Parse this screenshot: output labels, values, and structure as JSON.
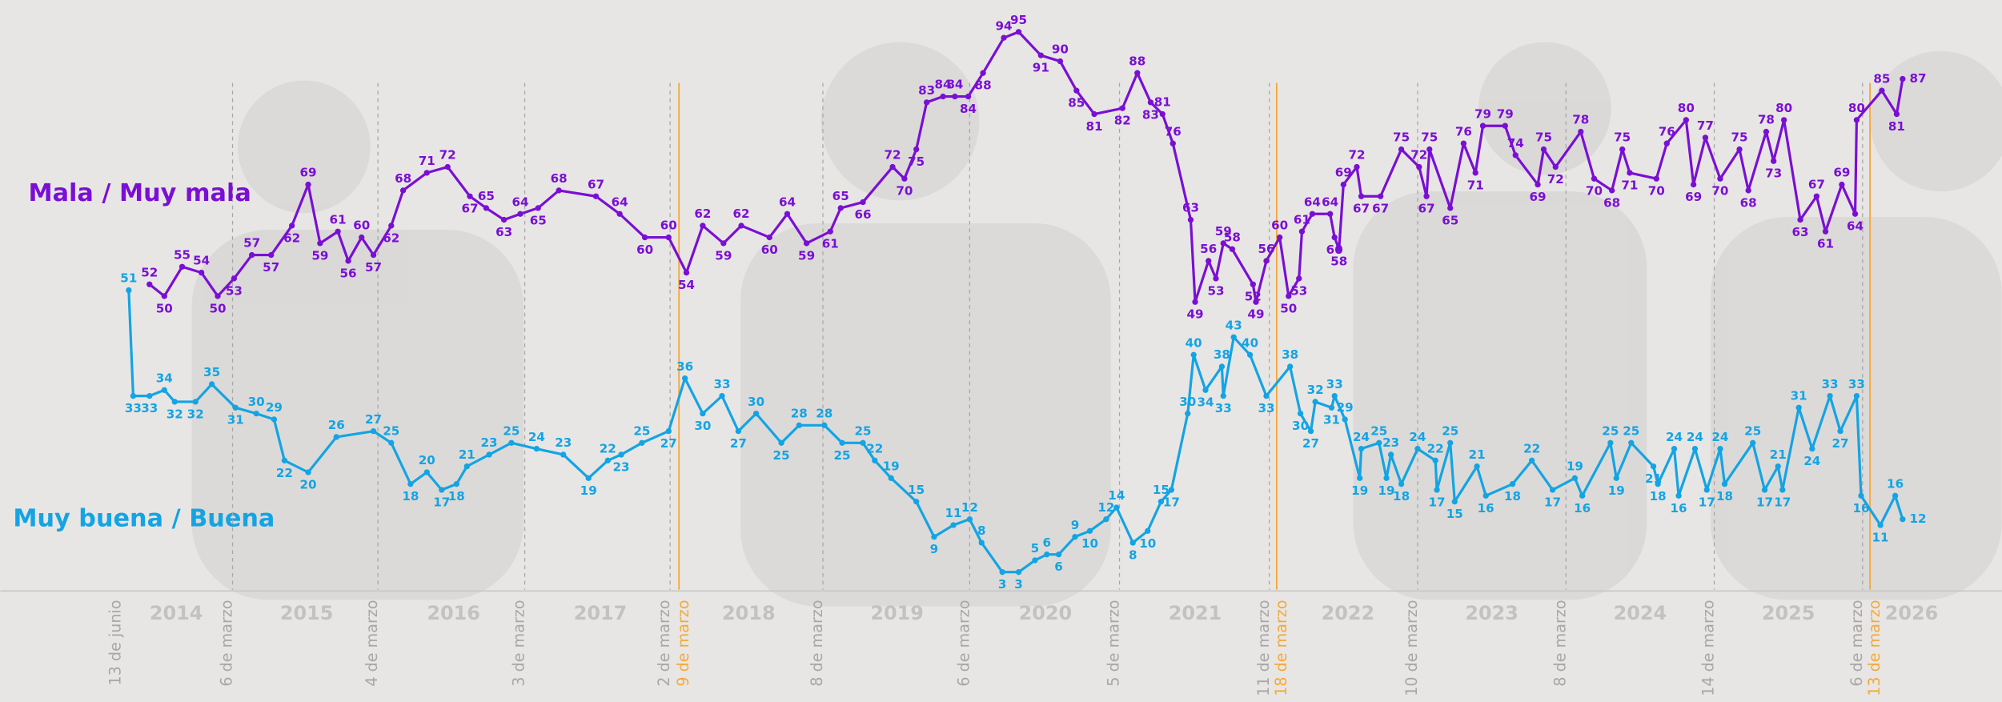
{
  "chart_data": {
    "type": "line",
    "xlim": [
      2013.614,
      2027.108
    ],
    "ylim": [
      0,
      100
    ],
    "xticks": [
      {
        "value": 2014.8,
        "label": "2014"
      },
      {
        "value": 2015.68,
        "label": "2015"
      },
      {
        "value": 2016.67,
        "label": "2016"
      },
      {
        "value": 2017.66,
        "label": "2017"
      },
      {
        "value": 2018.66,
        "label": "2018"
      },
      {
        "value": 2019.66,
        "label": "2019"
      },
      {
        "value": 2020.66,
        "label": "2020"
      },
      {
        "value": 2021.67,
        "label": "2021"
      },
      {
        "value": 2022.7,
        "label": "2022"
      },
      {
        "value": 2023.67,
        "label": "2023"
      },
      {
        "value": 2024.67,
        "label": "2024"
      },
      {
        "value": 2025.67,
        "label": "2025"
      },
      {
        "value": 2026.5,
        "label": "2026"
      }
    ],
    "markers": [
      {
        "x": 2014.43,
        "label": "13 de junio",
        "color": "#a9a7a5",
        "style": "none"
      },
      {
        "x": 2015.18,
        "label": "6 de marzo",
        "color": "#a9a7a5",
        "style": "dashed"
      },
      {
        "x": 2016.16,
        "label": "4 de marzo",
        "color": "#a9a7a5",
        "style": "dashed"
      },
      {
        "x": 2017.15,
        "label": "3 de marzo",
        "color": "#a9a7a5",
        "style": "dashed"
      },
      {
        "x": 2018.13,
        "label": "2 de marzo",
        "color": "#a9a7a5",
        "style": "dashed"
      },
      {
        "x": 2018.19,
        "label": "9 de marzo",
        "color": "#f4a93b",
        "style": "solid"
      },
      {
        "x": 2019.16,
        "label": "8 de marzo",
        "color": "#a9a7a5",
        "style": "dashed"
      },
      {
        "x": 2020.15,
        "label": "6 de marzo",
        "color": "#a9a7a5",
        "style": "dashed"
      },
      {
        "x": 2021.16,
        "label": "5 de marzo",
        "color": "#a9a7a5",
        "style": "dashed"
      },
      {
        "x": 2022.17,
        "label": "11 de marzo",
        "color": "#a9a7a5",
        "style": "dashed"
      },
      {
        "x": 2022.22,
        "label": "18 de marzo",
        "color": "#f4a93b",
        "style": "solid"
      },
      {
        "x": 2023.17,
        "label": "10 de marzo",
        "color": "#a9a7a5",
        "style": "dashed"
      },
      {
        "x": 2024.17,
        "label": "8 de marzo",
        "color": "#a9a7a5",
        "style": "dashed"
      },
      {
        "x": 2025.17,
        "label": "14 de marzo",
        "color": "#a9a7a5",
        "style": "dashed"
      },
      {
        "x": 2026.17,
        "label": "6 de marzo",
        "color": "#a9a7a5",
        "style": "dashed"
      },
      {
        "x": 2026.22,
        "label": "13 de marzo",
        "color": "#f4a93b",
        "style": "solid"
      }
    ],
    "series": [
      {
        "name": "Mala / Muy mala",
        "color": "#7a0fd4",
        "x": [
          2014.62,
          2014.72,
          2014.84,
          2014.97,
          2015.08,
          2015.19,
          2015.31,
          2015.44,
          2015.58,
          2015.69,
          2015.77,
          2015.89,
          2015.96,
          2016.05,
          2016.13,
          2016.25,
          2016.33,
          2016.49,
          2016.63,
          2016.78,
          2016.89,
          2017.01,
          2017.12,
          2017.24,
          2017.38,
          2017.63,
          2017.79,
          2017.96,
          2018.12,
          2018.24,
          2018.35,
          2018.49,
          2018.61,
          2018.8,
          2018.92,
          2019.05,
          2019.21,
          2019.28,
          2019.43,
          2019.63,
          2019.71,
          2019.79,
          2019.86,
          2019.97,
          2020.05,
          2020.14,
          2020.24,
          2020.38,
          2020.48,
          2020.63,
          2020.76,
          2020.87,
          2020.99,
          2021.18,
          2021.28,
          2021.37,
          2021.45,
          2021.52,
          2021.64,
          2021.67,
          2021.76,
          2021.81,
          2021.86,
          2021.92,
          2022.06,
          2022.08,
          2022.15,
          2022.24,
          2022.3,
          2022.37,
          2022.39,
          2022.46,
          2022.58,
          2022.61,
          2022.64,
          2022.67,
          2022.76,
          2022.79,
          2022.92,
          2023.06,
          2023.18,
          2023.23,
          2023.25,
          2023.39,
          2023.48,
          2023.56,
          2023.61,
          2023.76,
          2023.83,
          2023.98,
          2024.02,
          2024.1,
          2024.27,
          2024.36,
          2024.48,
          2024.55,
          2024.6,
          2024.78,
          2024.85,
          2024.98,
          2025.03,
          2025.11,
          2025.21,
          2025.34,
          2025.4,
          2025.52,
          2025.57,
          2025.64,
          2025.75,
          2025.86,
          2025.92,
          2026.03,
          2026.12,
          2026.13,
          2026.3,
          2026.4,
          2026.44
        ],
        "values": [
          52,
          50,
          55,
          54,
          50,
          53,
          57,
          57,
          62,
          69,
          59,
          61,
          56,
          60,
          57,
          62,
          68,
          71,
          72,
          67,
          65,
          63,
          64,
          65,
          68,
          67,
          64,
          60,
          60,
          54,
          62,
          59,
          62,
          60,
          64,
          59,
          61,
          65,
          66,
          72,
          70,
          75,
          83,
          84,
          84,
          84,
          88,
          94,
          95,
          91,
          90,
          85,
          81,
          82,
          88,
          83,
          81,
          76,
          63,
          49,
          56,
          53,
          59,
          58,
          52,
          49,
          56,
          60,
          50,
          53,
          61,
          64,
          64,
          60,
          58,
          69,
          72,
          67,
          67,
          75,
          72,
          67,
          75,
          65,
          76,
          71,
          79,
          79,
          74,
          69,
          75,
          72,
          78,
          70,
          68,
          75,
          71,
          70,
          76,
          80,
          69,
          77,
          70,
          75,
          68,
          78,
          73,
          80,
          63,
          67,
          61,
          69,
          64,
          80,
          85,
          81,
          87
        ]
      },
      {
        "name": "Muy buena / Buena",
        "color": "#13a4e4",
        "x": [
          2014.48,
          2014.51,
          2014.62,
          2014.72,
          2014.79,
          2014.93,
          2015.04,
          2015.2,
          2015.34,
          2015.46,
          2015.53,
          2015.69,
          2015.88,
          2016.13,
          2016.25,
          2016.38,
          2016.49,
          2016.59,
          2016.69,
          2016.76,
          2016.91,
          2017.06,
          2017.23,
          2017.41,
          2017.58,
          2017.71,
          2017.8,
          2017.94,
          2018.12,
          2018.23,
          2018.35,
          2018.48,
          2018.59,
          2018.71,
          2018.88,
          2019.0,
          2019.17,
          2019.29,
          2019.43,
          2019.51,
          2019.62,
          2019.79,
          2019.91,
          2020.04,
          2020.15,
          2020.23,
          2020.37,
          2020.48,
          2020.59,
          2020.67,
          2020.75,
          2020.86,
          2020.96,
          2021.07,
          2021.14,
          2021.25,
          2021.35,
          2021.44,
          2021.51,
          2021.62,
          2021.66,
          2021.74,
          2021.85,
          2021.86,
          2021.93,
          2022.04,
          2022.15,
          2022.31,
          2022.38,
          2022.45,
          2022.48,
          2022.59,
          2022.61,
          2022.68,
          2022.78,
          2022.79,
          2022.91,
          2022.96,
          2022.99,
          2023.06,
          2023.17,
          2023.29,
          2023.3,
          2023.39,
          2023.42,
          2023.57,
          2023.63,
          2023.81,
          2023.94,
          2024.08,
          2024.23,
          2024.28,
          2024.47,
          2024.51,
          2024.61,
          2024.76,
          2024.79,
          2024.9,
          2024.93,
          2025.04,
          2025.12,
          2025.21,
          2025.24,
          2025.43,
          2025.51,
          2025.6,
          2025.63,
          2025.74,
          2025.83,
          2025.95,
          2026.02,
          2026.13,
          2026.16,
          2026.29,
          2026.39,
          2026.44
        ],
        "values": [
          51,
          33,
          33,
          34,
          32,
          32,
          35,
          31,
          30,
          29,
          22,
          20,
          26,
          27,
          25,
          18,
          20,
          17,
          18,
          21,
          23,
          25,
          24,
          23,
          19,
          22,
          23,
          25,
          27,
          36,
          30,
          33,
          27,
          30,
          25,
          28,
          28,
          25,
          25,
          22,
          19,
          15,
          9,
          11,
          12,
          8,
          3,
          3,
          5,
          6,
          6,
          9,
          10,
          12,
          14,
          8,
          10,
          15,
          17,
          30,
          40,
          34,
          38,
          33,
          43,
          40,
          33,
          38,
          30,
          27,
          32,
          31,
          33,
          29,
          19,
          24,
          25,
          19,
          23,
          18,
          24,
          22,
          17,
          25,
          15,
          21,
          16,
          18,
          22,
          17,
          19,
          16,
          25,
          19,
          25,
          21,
          18,
          24,
          16,
          24,
          17,
          24,
          18,
          25,
          17,
          21,
          17,
          31,
          24,
          33,
          27,
          33,
          16,
          11,
          16,
          12
        ]
      }
    ]
  }
}
